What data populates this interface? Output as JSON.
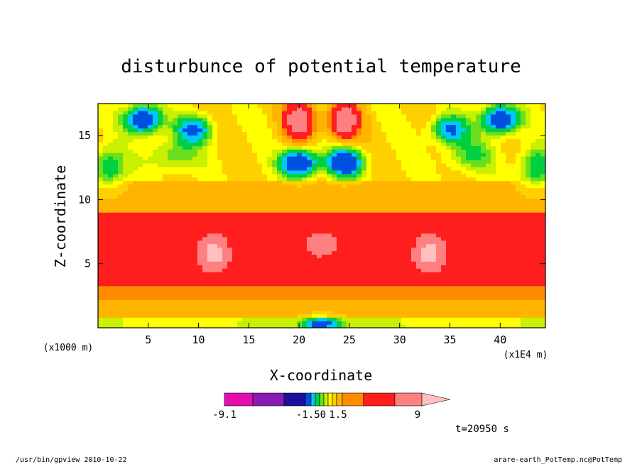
{
  "chart_data": {
    "type": "heatmap",
    "subtype": "filled-contour",
    "title": "disturbunce of potential temperature",
    "xlabel": "X-coordinate",
    "ylabel": "Z-coordinate",
    "x_unit": "(x1E4 m)",
    "y_unit": "(x1000 m)",
    "xlim": [
      0,
      44.5
    ],
    "ylim": [
      0,
      17.5
    ],
    "xticks": [
      5,
      10,
      15,
      20,
      25,
      30,
      35,
      40
    ],
    "yticks": [
      5,
      10,
      15
    ],
    "grid": false,
    "colorbar": {
      "labels": [
        "-9.1",
        "-1.50",
        "1.5",
        "9"
      ],
      "levels": [
        -9.1,
        -6.5,
        -4.0,
        -1.5,
        -1.0,
        -0.5,
        -0.25,
        0,
        0.25,
        0.5,
        1.0,
        1.5,
        3.0,
        6.0,
        9.0
      ],
      "colors": [
        "#e40fb0",
        "#8a1ab4",
        "#1a10a0",
        "#0050e0",
        "#00c8ff",
        "#00d040",
        "#68e020",
        "#c8f000",
        "#ffff00",
        "#ffd000",
        "#ffb400",
        "#ff8c00",
        "#ff1e1e",
        "#ff8080",
        "#ffc0c0"
      ]
    },
    "features": [
      {
        "x": 4.5,
        "z": 16.3,
        "value": -3.0
      },
      {
        "x": 40.0,
        "z": 16.3,
        "value": -3.0
      },
      {
        "x": 9.5,
        "z": 15.5,
        "value": -2.0
      },
      {
        "x": 35.0,
        "z": 15.5,
        "value": -2.0
      },
      {
        "x": 20.0,
        "z": 16.2,
        "value": 5.0
      },
      {
        "x": 24.5,
        "z": 16.2,
        "value": 5.0
      },
      {
        "x": 20.0,
        "z": 12.9,
        "value": -3.0
      },
      {
        "x": 24.5,
        "z": 12.9,
        "value": -3.0
      },
      {
        "x": 22.2,
        "z": 6.5,
        "value": 2.5
      },
      {
        "x": 11.5,
        "z": 5.8,
        "value": 6.0
      },
      {
        "x": 33.0,
        "z": 5.8,
        "value": 6.0
      },
      {
        "x": 22.2,
        "z": 0.3,
        "value": -2.0
      }
    ]
  },
  "annotations": {
    "time": "t=20950 s",
    "footer_left": "/usr/bin/gpview 2010-10-22",
    "footer_right": "arare-earth_PotTemp.nc@PotTemp"
  }
}
